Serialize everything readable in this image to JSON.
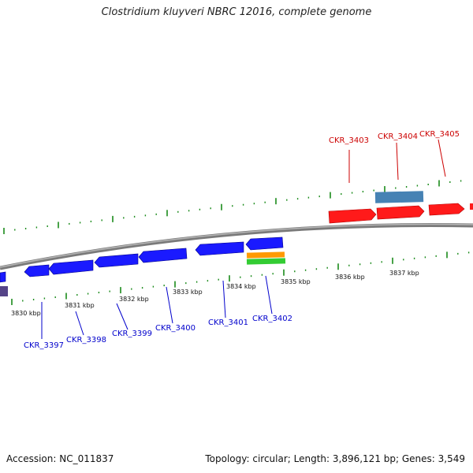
{
  "header": {
    "title": "Clostridium kluyveri NBRC 12016, complete genome"
  },
  "footer": {
    "accession": "Accession: NC_011837",
    "summary": "Topology: circular; Length: 3,896,121 bp; Genes: 3,549"
  },
  "colors": {
    "forward_gene": "#ff1a1a",
    "reverse_gene": "#1a1aff",
    "backbone": "#7a7a7a",
    "tick": "#1a8a1a",
    "steelblue_feature": "#4682b4",
    "orange_feature": "#ff9900",
    "green_feature": "#33cc33",
    "purple_feature": "#554488",
    "forward_label": "#cc0000",
    "reverse_label": "#0000cc"
  },
  "scale_labels": [
    "3830 kbp",
    "3831 kbp",
    "3832 kbp",
    "3833 kbp",
    "3834 kbp",
    "3835 kbp",
    "3836 kbp",
    "3837 kbp"
  ],
  "forward_genes": [
    "CKR_3403",
    "CKR_3404",
    "CKR_3405"
  ],
  "reverse_genes": [
    "CKR_3397",
    "CKR_3398",
    "CKR_3399",
    "CKR_3400",
    "CKR_3401",
    "CKR_3402"
  ]
}
